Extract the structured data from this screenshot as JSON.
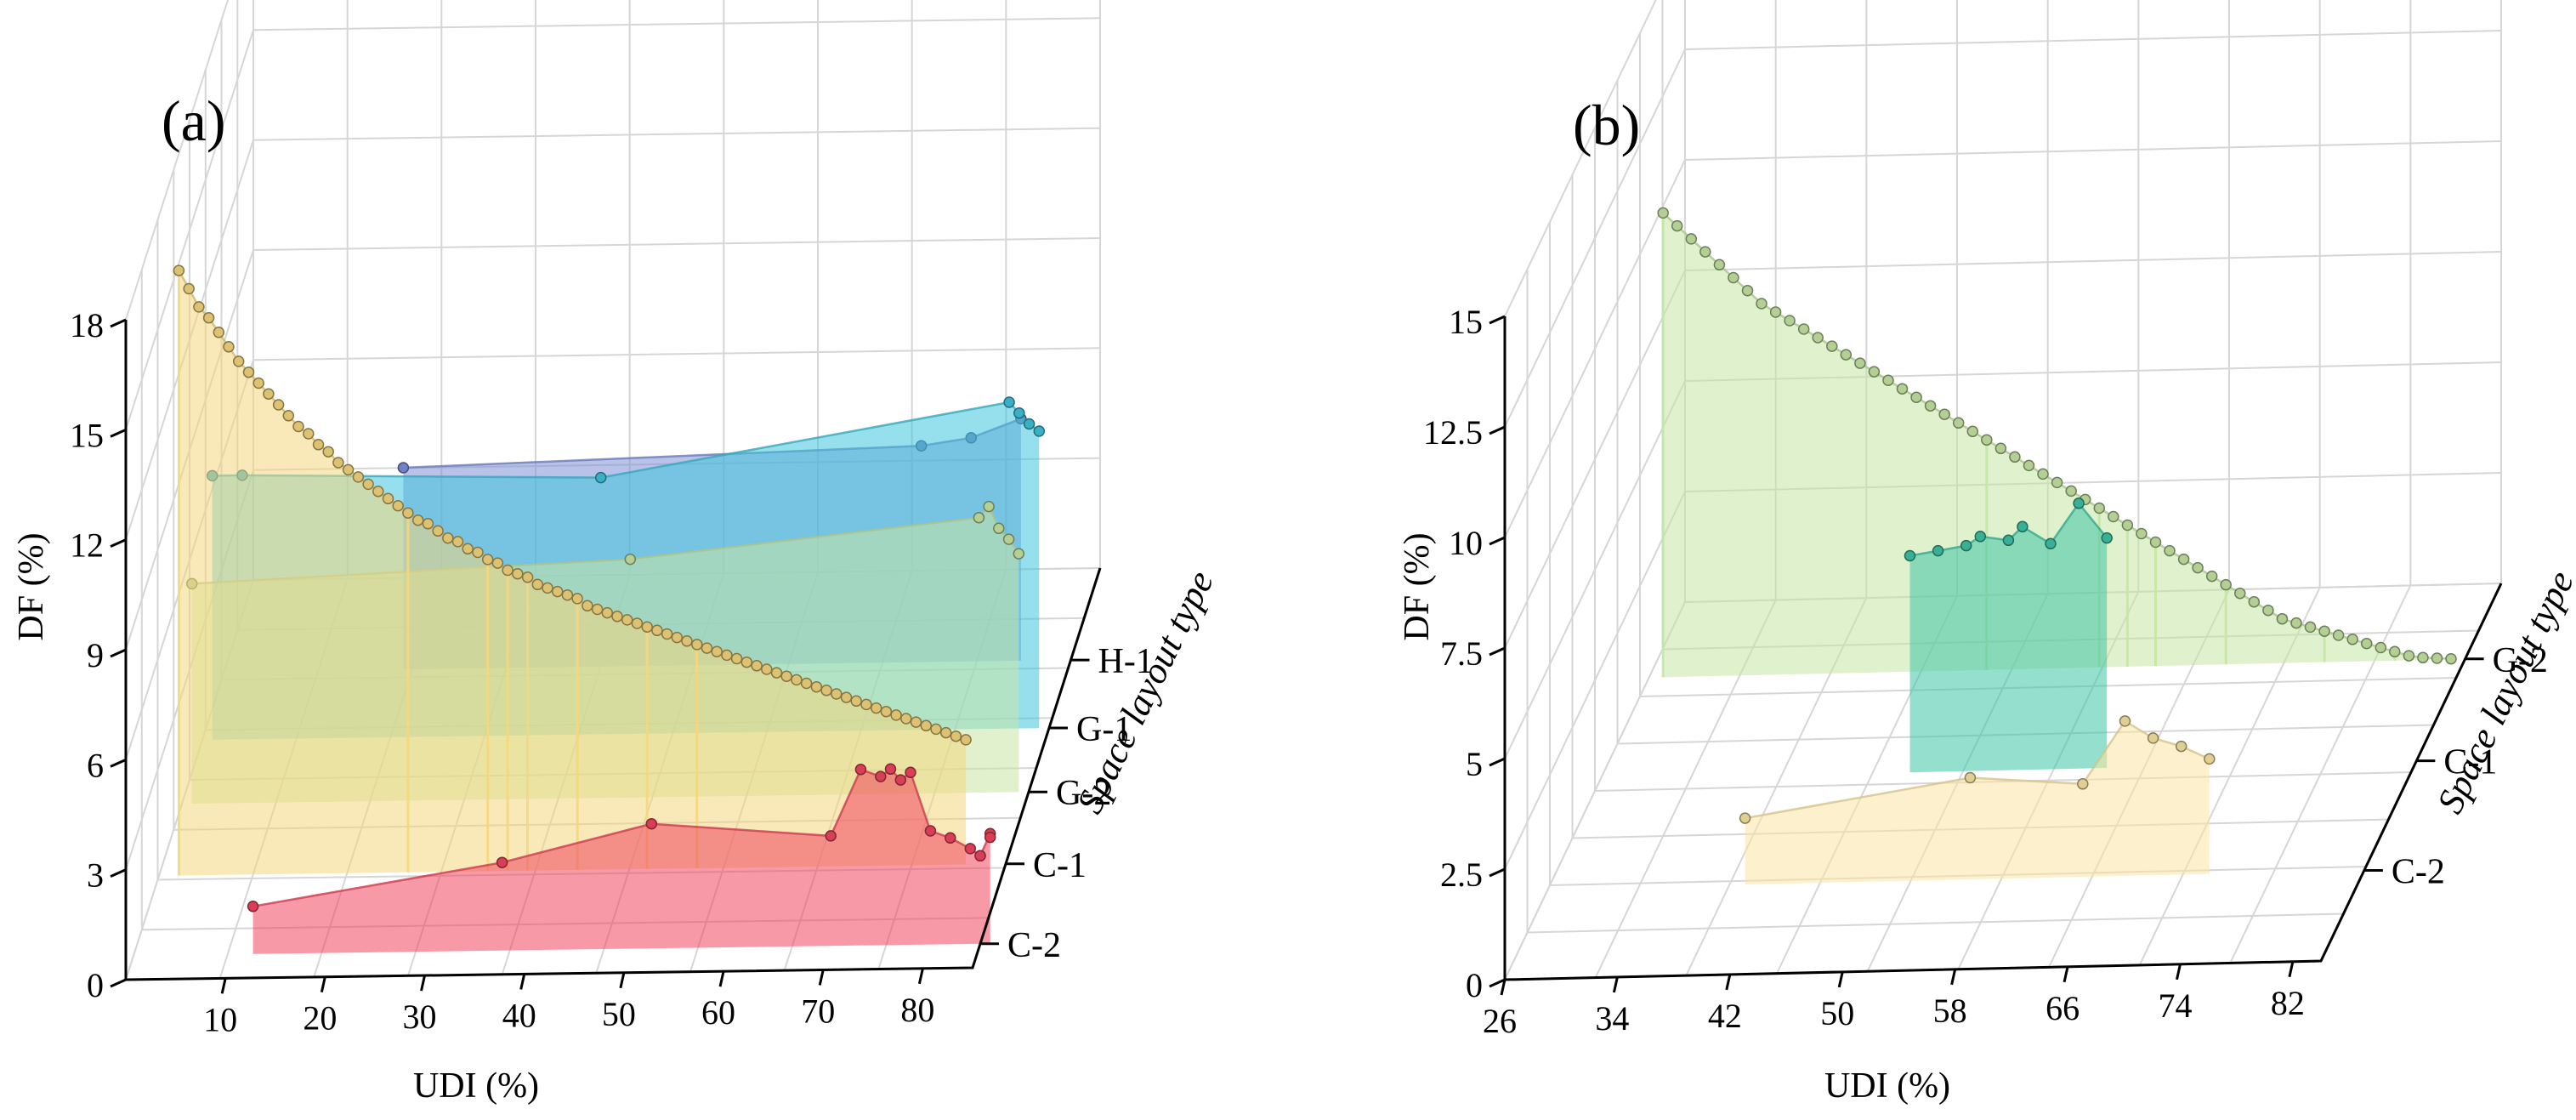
{
  "chart_data": [
    {
      "panel_label": "(a)",
      "type": "3d-area-line",
      "xlabel": "UDI (%)",
      "ylabel": "DF (%)",
      "zlabel": "Space layout type",
      "xlim": [
        0,
        85
      ],
      "ylim": [
        0,
        18
      ],
      "xticks": [
        "10",
        "20",
        "30",
        "40",
        "50",
        "60",
        "70",
        "80"
      ],
      "yticks": [
        "0",
        "3",
        "6",
        "9",
        "12",
        "15",
        "18"
      ],
      "categories": [
        "C-2",
        "C-1",
        "G-2",
        "G-1",
        "H-1"
      ],
      "series": [
        {
          "name": "C-2",
          "color": "#f0455f",
          "x": [
            12,
            37,
            52,
            70,
            73,
            75,
            76,
            77,
            78,
            80,
            82,
            84,
            85,
            85,
            86,
            86
          ],
          "y": [
            1.3,
            2.4,
            3.4,
            3.0,
            4.8,
            4.6,
            4.8,
            4.5,
            4.7,
            3.1,
            2.9,
            2.6,
            2.4,
            2.4,
            3.0,
            2.9
          ]
        },
        {
          "name": "C-1",
          "color": "#f4d77e",
          "x": [
            2,
            3,
            4,
            5,
            6,
            7,
            8,
            9,
            10,
            11,
            12,
            13,
            14,
            15,
            16,
            17,
            18,
            19,
            20,
            21,
            22,
            23,
            24,
            25,
            26,
            27,
            28,
            29,
            30,
            31,
            32,
            33,
            34,
            35,
            36,
            37,
            38,
            39,
            40,
            41,
            42,
            43,
            44,
            45,
            46,
            47,
            48,
            49,
            50,
            51,
            52,
            53,
            54,
            55,
            56,
            57,
            58,
            59,
            60,
            61,
            62,
            63,
            64,
            65,
            66,
            67,
            68,
            69,
            70,
            71,
            72,
            73,
            74,
            75,
            76,
            77,
            78,
            79,
            80,
            81
          ],
          "y": [
            16.5,
            16.0,
            15.5,
            15.2,
            14.8,
            14.4,
            14.0,
            13.7,
            13.4,
            13.1,
            12.8,
            12.5,
            12.2,
            12.0,
            11.7,
            11.5,
            11.2,
            11.0,
            10.8,
            10.6,
            10.4,
            10.2,
            10.0,
            9.8,
            9.6,
            9.5,
            9.3,
            9.1,
            9.0,
            8.8,
            8.7,
            8.5,
            8.4,
            8.2,
            8.1,
            8.0,
            7.8,
            7.7,
            7.6,
            7.5,
            7.4,
            7.2,
            7.1,
            7.0,
            6.9,
            6.8,
            6.7,
            6.6,
            6.5,
            6.4,
            6.3,
            6.2,
            6.1,
            6.0,
            5.9,
            5.8,
            5.7,
            5.6,
            5.5,
            5.4,
            5.3,
            5.2,
            5.1,
            5.0,
            4.9,
            4.8,
            4.7,
            4.6,
            4.5,
            4.4,
            4.3,
            4.2,
            4.1,
            4.0,
            3.9,
            3.8,
            3.7,
            3.6,
            3.5,
            3.4
          ]
        },
        {
          "name": "G-2",
          "color": "#c9e6a4",
          "x": [
            1,
            45,
            80,
            81,
            82,
            83,
            84
          ],
          "y": [
            6.0,
            6.5,
            7.5,
            7.8,
            7.2,
            6.9,
            6.5
          ]
        },
        {
          "name": "G-1",
          "color": "#40c4dd",
          "x": [
            1,
            4,
            40,
            81,
            82,
            83,
            84
          ],
          "y": [
            7.2,
            7.2,
            7.0,
            8.9,
            8.6,
            8.3,
            8.1
          ]
        },
        {
          "name": "H-1",
          "color": "#7f8fd6",
          "x": [
            18,
            70,
            75,
            80
          ],
          "y": [
            5.5,
            5.9,
            6.1,
            6.6
          ]
        }
      ]
    },
    {
      "panel_label": "(b)",
      "type": "3d-area-line",
      "xlabel": "UDI (%)",
      "ylabel": "DF (%)",
      "zlabel": "Space layout type",
      "xlim": [
        26,
        84
      ],
      "ylim": [
        0,
        15
      ],
      "xticks": [
        "26",
        "34",
        "42",
        "50",
        "58",
        "66",
        "74",
        "82"
      ],
      "yticks": [
        "0",
        "2.5",
        "5",
        "7.5",
        "10",
        "12.5",
        "15"
      ],
      "categories": [
        "C-2",
        "C-1",
        "G-2"
      ],
      "series": [
        {
          "name": "C-2",
          "color": "#f9e5a3",
          "x": [
            40,
            56,
            64,
            67,
            69,
            71,
            73
          ],
          "y": [
            1.5,
            2.3,
            2.1,
            3.5,
            3.1,
            2.9,
            2.6
          ]
        },
        {
          "name": "C-1",
          "color": "#3ec4a6",
          "x": [
            48,
            50,
            52,
            53,
            55,
            56,
            58,
            60,
            62
          ],
          "y": [
            4.9,
            5.0,
            5.1,
            5.3,
            5.2,
            5.5,
            5.1,
            6.0,
            5.2
          ]
        },
        {
          "name": "G-2",
          "color": "#c7e6a4",
          "x": [
            27,
            28,
            29,
            30,
            31,
            32,
            33,
            34,
            35,
            36,
            37,
            38,
            39,
            40,
            41,
            42,
            43,
            44,
            45,
            46,
            47,
            48,
            49,
            50,
            51,
            52,
            53,
            54,
            55,
            56,
            57,
            58,
            59,
            60,
            61,
            62,
            63,
            64,
            65,
            66,
            67,
            68,
            69,
            70,
            71,
            72,
            73,
            74,
            75,
            76,
            77,
            78,
            79,
            80,
            81,
            82,
            83
          ],
          "y": [
            10.5,
            10.2,
            9.9,
            9.6,
            9.3,
            9.0,
            8.7,
            8.4,
            8.2,
            8.0,
            7.8,
            7.6,
            7.4,
            7.2,
            7.0,
            6.8,
            6.6,
            6.4,
            6.2,
            6.0,
            5.8,
            5.6,
            5.4,
            5.2,
            5.0,
            4.8,
            4.6,
            4.4,
            4.2,
            4.0,
            3.8,
            3.6,
            3.4,
            3.2,
            3.0,
            2.8,
            2.6,
            2.4,
            2.2,
            2.0,
            1.8,
            1.6,
            1.4,
            1.2,
            1.0,
            0.9,
            0.8,
            0.7,
            0.6,
            0.5,
            0.4,
            0.3,
            0.2,
            0.1,
            0.05,
            0.03,
            0.01
          ]
        }
      ]
    }
  ]
}
